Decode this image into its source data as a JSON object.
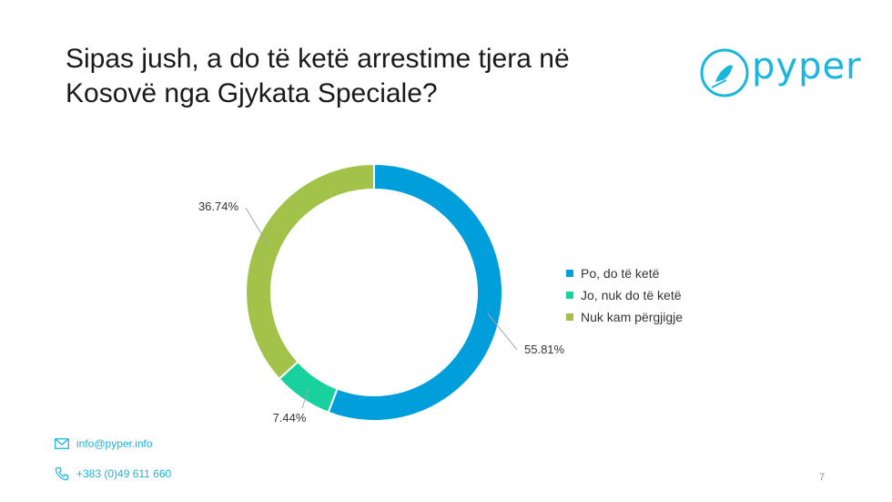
{
  "slide": {
    "title": "Sipas jush, a do të ketë arrestime tjera në Kosovë nga Gjykata Speciale?",
    "page_number": "7"
  },
  "logo": {
    "text": "pyper",
    "icon": "bird-icon"
  },
  "footer": {
    "email": "info@pyper.info",
    "phone": "+383 (0)49 611 660",
    "email_icon": "envelope-icon",
    "phone_icon": "phone-icon"
  },
  "colors": {
    "brand": "#1ab6dc"
  },
  "chart_data": {
    "type": "pie",
    "variant": "donut",
    "categories": [
      "Po, do të ketë",
      "Jo, nuk do të ketë",
      "Nuk kam përgjigje"
    ],
    "values": [
      55.81,
      7.44,
      36.74
    ],
    "labels": [
      "55.81%",
      "7.44%",
      "36.74%"
    ],
    "colors": [
      "#009fdb",
      "#19d19e",
      "#a3c24a"
    ],
    "legend_position": "right"
  }
}
